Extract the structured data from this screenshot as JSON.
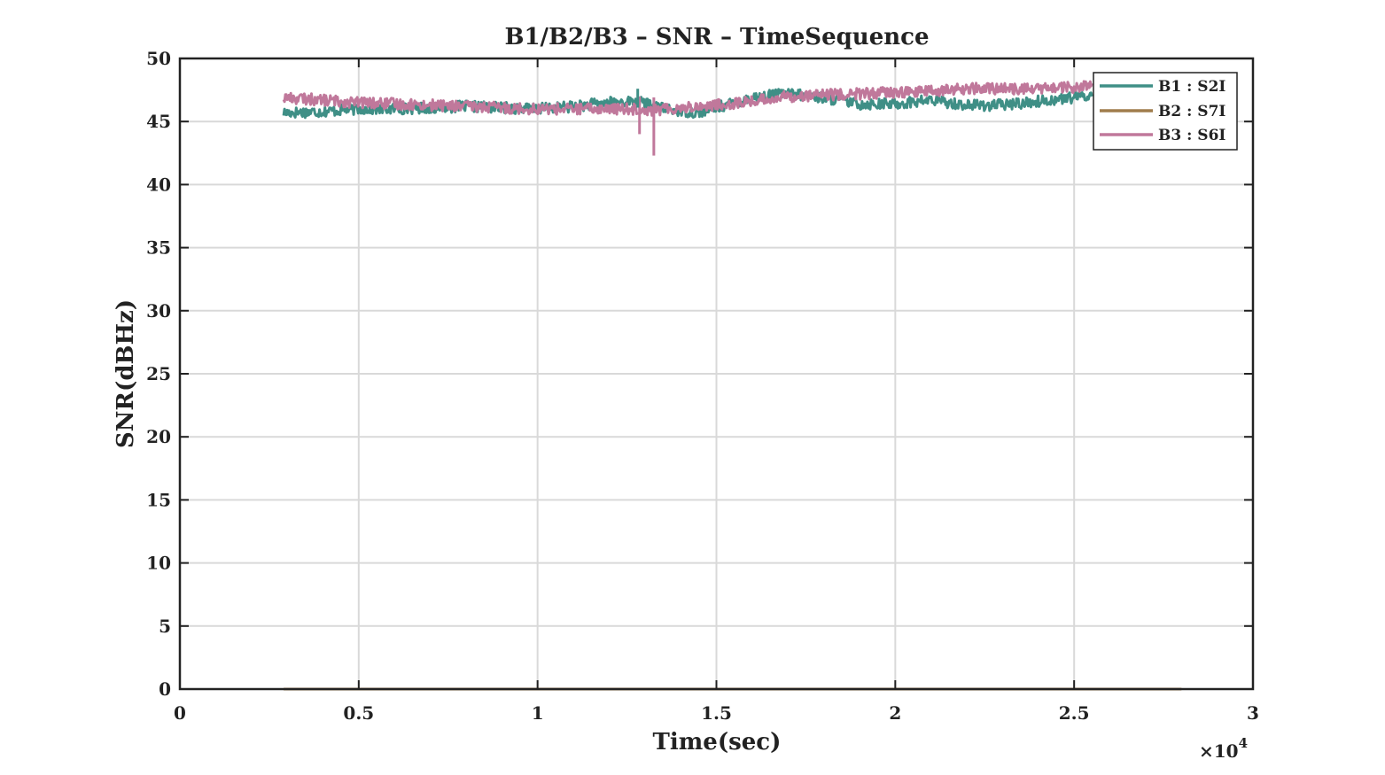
{
  "chart_data": {
    "type": "line",
    "title": "B1/B2/B3 – SNR – TimeSequence",
    "xlabel": "Time(sec)",
    "ylabel": "SNR(dBHz)",
    "x_exponent_label": "×10",
    "x_exponent_power": "4",
    "xlim": [
      0,
      30000
    ],
    "ylim": [
      0,
      50
    ],
    "x_ticks": [
      0,
      5000,
      10000,
      15000,
      20000,
      25000,
      30000
    ],
    "x_tick_labels": [
      "0",
      "0.5",
      "1",
      "1.5",
      "2",
      "2.5",
      "3"
    ],
    "y_ticks": [
      0,
      5,
      10,
      15,
      20,
      25,
      30,
      35,
      40,
      45,
      50
    ],
    "y_tick_labels": [
      "0",
      "5",
      "10",
      "15",
      "20",
      "25",
      "30",
      "35",
      "40",
      "45",
      "50"
    ],
    "grid": true,
    "legend_position": "top-right",
    "series": [
      {
        "name": "B1 : S2I",
        "color": "#3f8f86",
        "x": [
          2900,
          4000,
          5000,
          6000,
          7000,
          8000,
          9000,
          10000,
          11000,
          12000,
          12800,
          13500,
          14500,
          15000,
          16000,
          17000,
          18000,
          19000,
          20000,
          21000,
          22000,
          23000,
          24000,
          25000,
          25500
        ],
        "y": [
          45.7,
          45.8,
          46.0,
          46.0,
          46.1,
          46.2,
          46.1,
          46.0,
          46.2,
          46.5,
          46.6,
          46.0,
          45.7,
          46.1,
          46.9,
          47.2,
          46.9,
          46.4,
          46.4,
          46.7,
          46.3,
          46.3,
          46.6,
          46.9,
          47.1
        ]
      },
      {
        "name": "B2 : S7I",
        "color": "#a07d4c",
        "x": [
          2900,
          28000
        ],
        "y": [
          0,
          0
        ]
      },
      {
        "name": "B3 : S6I",
        "color": "#c0789b",
        "x": [
          2900,
          4000,
          5000,
          6000,
          7000,
          8000,
          9000,
          10000,
          11000,
          12000,
          12800,
          13200,
          14000,
          15000,
          16000,
          17000,
          18000,
          19000,
          20000,
          21000,
          22000,
          23000,
          24000,
          25000,
          25500
        ],
        "y": [
          46.9,
          46.7,
          46.5,
          46.4,
          46.3,
          46.2,
          46.1,
          46.0,
          46.0,
          46.0,
          46.0,
          45.9,
          46.1,
          46.3,
          46.6,
          47.0,
          47.1,
          47.2,
          47.3,
          47.4,
          47.6,
          47.6,
          47.6,
          47.7,
          47.8
        ]
      }
    ]
  }
}
